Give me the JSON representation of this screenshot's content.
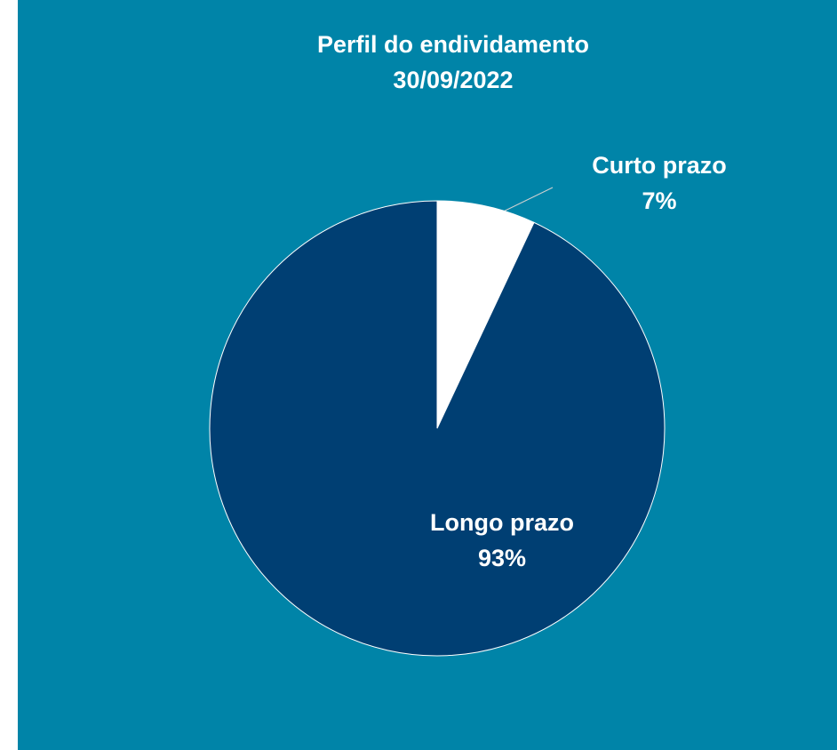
{
  "chart_data": {
    "type": "pie",
    "title": "Perfil do endividamento",
    "subtitle": "30/09/2022",
    "categories": [
      "Curto prazo",
      "Longo prazo"
    ],
    "values": [
      7,
      93
    ],
    "value_labels": [
      "7%",
      "93%"
    ],
    "colors": [
      "#ffffff",
      "#003f73"
    ],
    "background": "#0084a8"
  }
}
